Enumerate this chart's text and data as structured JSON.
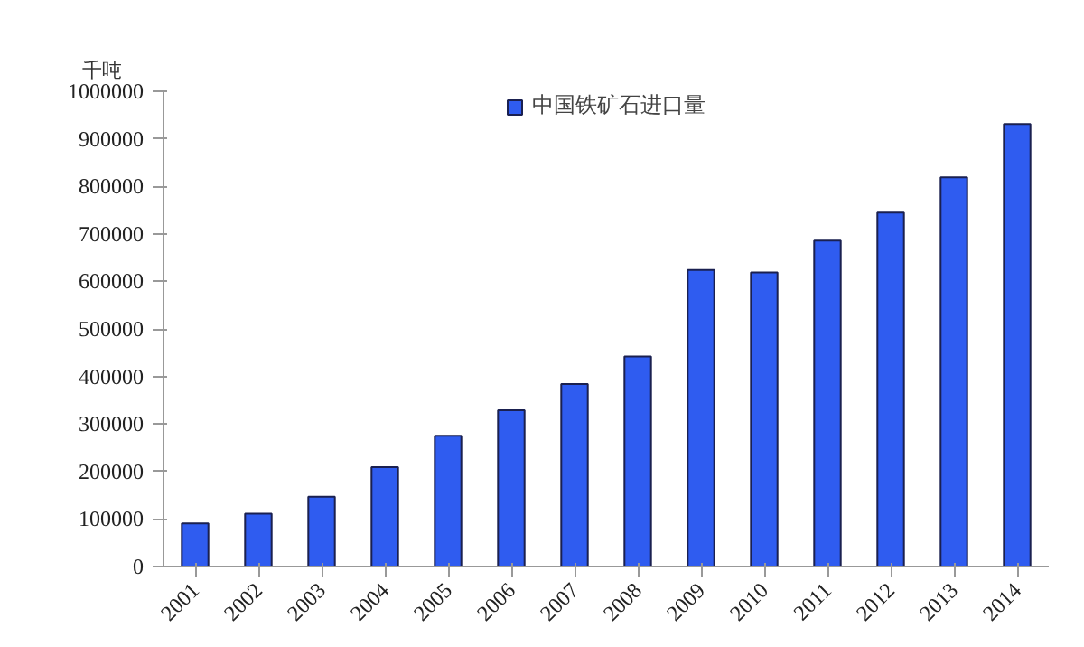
{
  "chart_data": {
    "type": "bar",
    "ylabel": "千吨",
    "categories": [
      "2001",
      "2002",
      "2003",
      "2004",
      "2005",
      "2006",
      "2007",
      "2008",
      "2009",
      "2010",
      "2011",
      "2012",
      "2013",
      "2014"
    ],
    "series": [
      {
        "name": "中国铁矿石进口量",
        "color": "#2f5cf0",
        "values": [
          91000,
          111000,
          147000,
          209000,
          275000,
          329000,
          384000,
          442000,
          624000,
          619000,
          686000,
          745000,
          819000,
          931000
        ]
      }
    ],
    "ylim": [
      0,
      1000000
    ],
    "yticks": [
      0,
      100000,
      200000,
      300000,
      400000,
      500000,
      600000,
      700000,
      800000,
      900000,
      1000000
    ],
    "grid": false,
    "legend": "top"
  }
}
